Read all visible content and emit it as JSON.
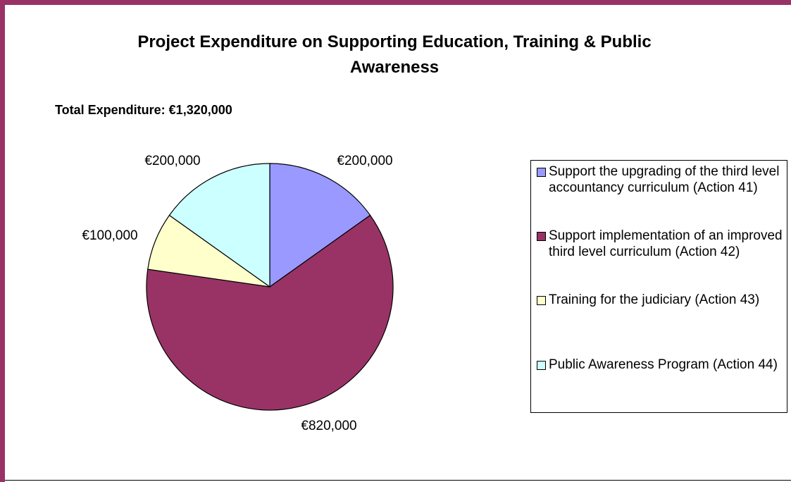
{
  "chart_data": {
    "type": "pie",
    "title": "Project Expenditure on Supporting Education, Training & Public\nAwareness",
    "subtitle": "Total Expenditure: €1,320,000",
    "categories": [
      "Support the upgrading of the third level accountancy curriculum (Action 41)",
      "Support implementation of an improved third level curriculum (Action 42)",
      "Training for the judiciary (Action 43)",
      "Public Awareness Program (Action 44)"
    ],
    "values": [
      200000,
      820000,
      100000,
      200000
    ],
    "value_labels": [
      "€200,000",
      "€820,000",
      "€100,000",
      "€200,000"
    ],
    "colors": [
      "#9999ff",
      "#993366",
      "#ffffcc",
      "#ccffff"
    ],
    "legend_position": "right",
    "start_angle": "12 o'clock",
    "direction": "clockwise"
  },
  "theme": {
    "frame_color": "#993366",
    "slice_border": "#000000"
  }
}
